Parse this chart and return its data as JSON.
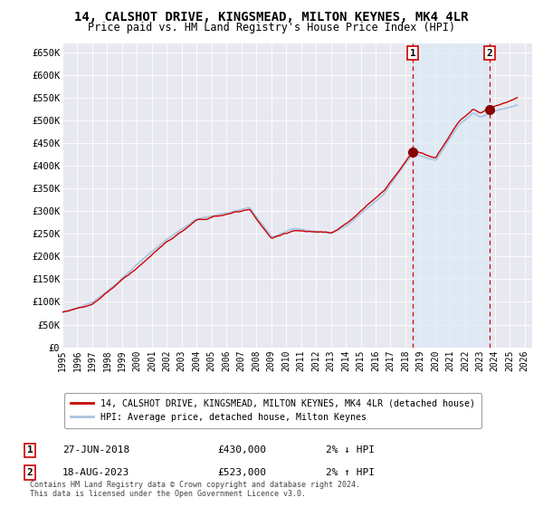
{
  "title": "14, CALSHOT DRIVE, KINGSMEAD, MILTON KEYNES, MK4 4LR",
  "subtitle": "Price paid vs. HM Land Registry's House Price Index (HPI)",
  "ylim": [
    0,
    670000
  ],
  "yticks": [
    0,
    50000,
    100000,
    150000,
    200000,
    250000,
    300000,
    350000,
    400000,
    450000,
    500000,
    550000,
    600000,
    650000
  ],
  "xlim_start": 1995.0,
  "xlim_end": 2026.5,
  "transaction1_x": 2018.49,
  "transaction1_y": 430000,
  "transaction2_x": 2023.63,
  "transaction2_y": 523000,
  "hpi_color": "#a8c4e0",
  "price_color": "#cc0000",
  "marker_color": "#880000",
  "vline_color": "#cc0000",
  "shade_color": "#daeaf7",
  "legend_price_label": "14, CALSHOT DRIVE, KINGSMEAD, MILTON KEYNES, MK4 4LR (detached house)",
  "legend_hpi_label": "HPI: Average price, detached house, Milton Keynes",
  "note1_num": "1",
  "note1_date": "27-JUN-2018",
  "note1_price": "£430,000",
  "note1_hpi": "2% ↓ HPI",
  "note2_num": "2",
  "note2_date": "18-AUG-2023",
  "note2_price": "£523,000",
  "note2_hpi": "2% ↑ HPI",
  "footer": "Contains HM Land Registry data © Crown copyright and database right 2024.\nThis data is licensed under the Open Government Licence v3.0.",
  "bg_color": "#ffffff",
  "plot_bg_color": "#e8e8f0"
}
